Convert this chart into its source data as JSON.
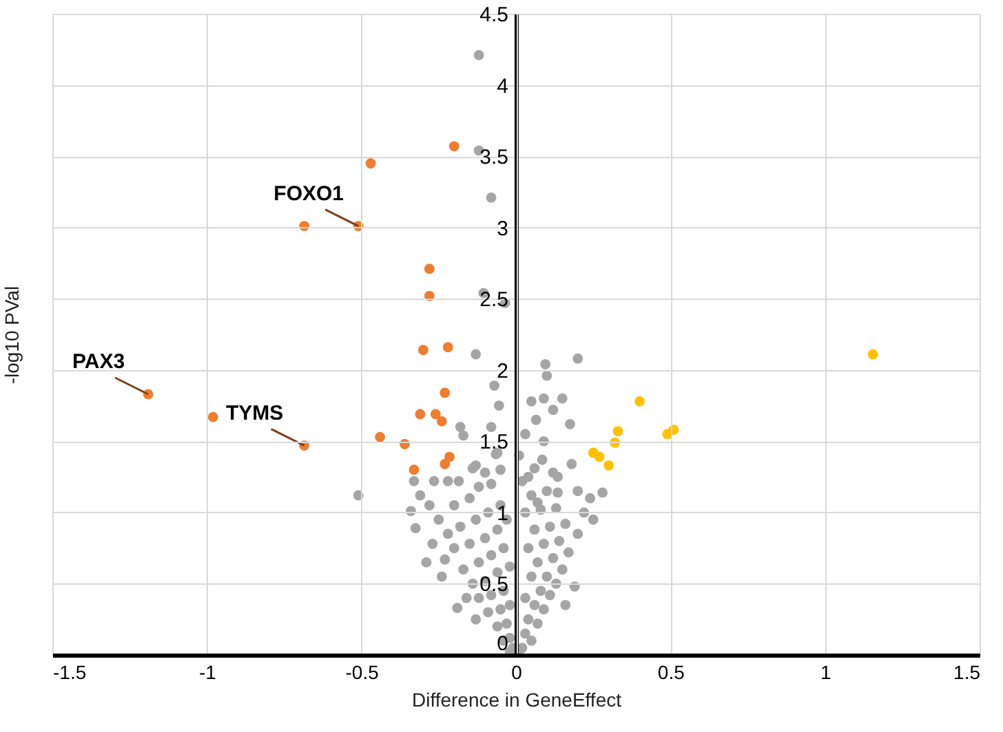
{
  "chart_data": {
    "type": "scatter",
    "xlabel": "Difference in GeneEffect",
    "ylabel": "-log10 PVal",
    "xlim": [
      -1.5,
      1.5
    ],
    "ylim": [
      0,
      4.5
    ],
    "xticks": [
      -1.5,
      -1,
      -0.5,
      0,
      0.5,
      1,
      1.5
    ],
    "yticks": [
      0,
      0.5,
      1,
      1.5,
      2,
      2.5,
      3,
      3.5,
      4,
      4.5
    ],
    "grid": true,
    "marker": "circle",
    "annotations": [
      {
        "text": "FOXO1",
        "x": -0.51,
        "y": 3.01
      },
      {
        "text": "PAX3",
        "x": -1.19,
        "y": 1.83
      },
      {
        "text": "TYMS",
        "x": -0.685,
        "y": 1.47
      }
    ],
    "series": [
      {
        "color": "#a5a5a5",
        "x": [
          -0.12,
          -0.12,
          -0.08,
          -0.105,
          -0.035,
          -0.13,
          -0.07,
          -0.055,
          -0.18,
          -0.08,
          -0.17,
          -0.06,
          -0.13,
          -0.51,
          0.2,
          0.095,
          0.1,
          0.05,
          0.09,
          0.15,
          0.12,
          0.065,
          0.175,
          0.09,
          0.085,
          0.18,
          0.06,
          0.135,
          0.2,
          0.28,
          0.135,
          0.07,
          -0.33,
          -0.31,
          -0.34,
          -0.325,
          -0.29,
          -0.23,
          -0.19,
          -0.265,
          -0.22,
          -0.185,
          -0.065,
          -0.14,
          -0.1,
          -0.28,
          -0.25,
          -0.2,
          -0.15,
          -0.12,
          -0.08,
          -0.05,
          -0.22,
          -0.18,
          -0.13,
          -0.09,
          -0.05,
          -0.2,
          -0.15,
          -0.1,
          -0.06,
          -0.03,
          -0.17,
          -0.12,
          -0.08,
          -0.04,
          -0.14,
          -0.1,
          -0.06,
          -0.02,
          -0.12,
          -0.08,
          -0.04,
          -0.09,
          -0.05,
          -0.02,
          -0.06,
          -0.03,
          -0.04,
          -0.02,
          -0.01,
          -0.02,
          -0.27,
          -0.24,
          -0.16,
          -0.13,
          0.02,
          0.01,
          0.03,
          0.05,
          0.04,
          0.07,
          0.06,
          0.09,
          0.03,
          0.08,
          0.11,
          0.05,
          0.1,
          0.13,
          0.07,
          0.12,
          0.15,
          0.04,
          0.09,
          0.14,
          0.17,
          0.06,
          0.11,
          0.16,
          0.2,
          0.03,
          0.08,
          0.13,
          0.22,
          0.05,
          0.1,
          0.24,
          0.02,
          0.04,
          0.12,
          0.19,
          0.16,
          0.25,
          0.01,
          0.03
        ],
        "values": [
          4.21,
          3.54,
          3.21,
          2.54,
          2.47,
          2.11,
          1.89,
          1.75,
          1.6,
          1.6,
          1.54,
          1.42,
          1.33,
          1.12,
          2.08,
          2.04,
          1.96,
          1.78,
          1.8,
          1.8,
          1.72,
          1.65,
          1.62,
          1.5,
          1.37,
          1.34,
          1.31,
          1.25,
          1.15,
          1.14,
          1.14,
          1.07,
          1.22,
          1.12,
          1.01,
          0.89,
          0.65,
          0.67,
          0.33,
          1.22,
          1.22,
          1.22,
          1.41,
          1.31,
          1.28,
          1.05,
          0.95,
          1.05,
          1.1,
          1.18,
          1.2,
          1.3,
          0.85,
          0.9,
          0.95,
          1,
          1.05,
          0.75,
          0.78,
          0.82,
          0.88,
          0.95,
          0.6,
          0.65,
          0.7,
          0.75,
          0.5,
          0.52,
          0.58,
          0.62,
          0.4,
          0.42,
          0.45,
          0.3,
          0.32,
          0.35,
          0.2,
          0.22,
          0.1,
          0.12,
          0.05,
          0.02,
          0.78,
          0.55,
          0.4,
          0.25,
          0.05,
          0.02,
          0.15,
          0.1,
          0.25,
          0.22,
          0.35,
          0.32,
          0.4,
          0.45,
          0.42,
          0.55,
          0.55,
          0.5,
          0.65,
          0.68,
          0.6,
          0.75,
          0.78,
          0.8,
          0.72,
          0.88,
          0.9,
          0.92,
          0.85,
          1,
          1.02,
          1.03,
          1,
          1.12,
          1.15,
          1.1,
          1.22,
          1.25,
          1.28,
          0.48,
          0.35,
          0.95,
          1.4,
          1.55
        ]
      },
      {
        "color": "#ed7d31",
        "x": [
          -0.2,
          -0.47,
          -0.685,
          -0.51,
          -0.28,
          -0.28,
          -0.3,
          -0.22,
          -1.19,
          -0.23,
          -0.98,
          -0.31,
          -0.26,
          -0.24,
          -0.685,
          -0.44,
          -0.36,
          -0.215,
          -0.23,
          -0.33
        ],
        "values": [
          3.57,
          3.45,
          3.01,
          3.01,
          2.71,
          2.52,
          2.14,
          2.16,
          1.83,
          1.84,
          1.67,
          1.69,
          1.69,
          1.64,
          1.47,
          1.53,
          1.48,
          1.39,
          1.34,
          1.3
        ]
      },
      {
        "color": "#ffc000",
        "x": [
          1.155,
          0.4,
          0.33,
          0.32,
          0.49,
          0.51,
          0.25,
          0.27,
          0.3
        ],
        "values": [
          2.11,
          1.78,
          1.57,
          1.49,
          1.55,
          1.58,
          1.42,
          1.39,
          1.33
        ]
      }
    ]
  }
}
